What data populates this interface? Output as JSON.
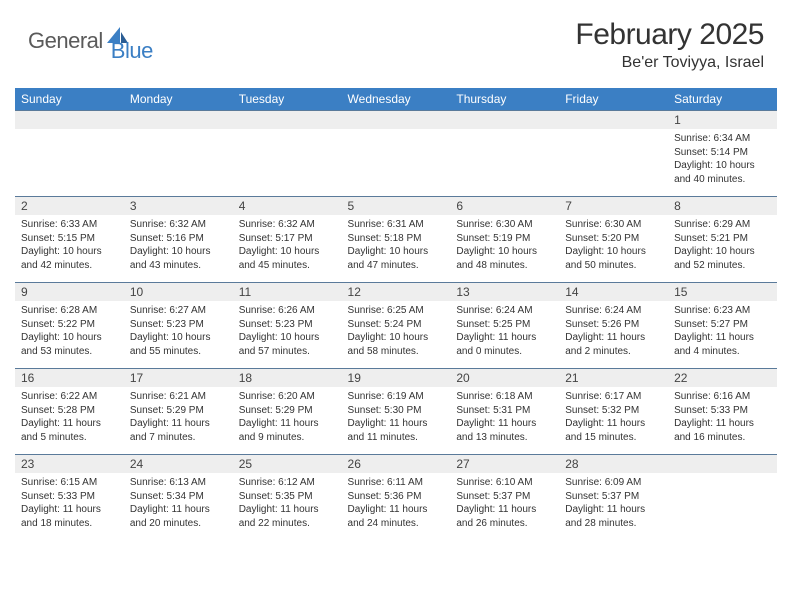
{
  "logo": {
    "general": "General",
    "blue": "Blue",
    "icon_color": "#3b7fc4"
  },
  "header": {
    "title": "February 2025",
    "location": "Be'er Toviyya, Israel"
  },
  "colors": {
    "header_bar": "#3b7fc4",
    "day_num_bg": "#eeeeee",
    "cell_border": "#5a7a9a",
    "text": "#333333"
  },
  "daynames": [
    "Sunday",
    "Monday",
    "Tuesday",
    "Wednesday",
    "Thursday",
    "Friday",
    "Saturday"
  ],
  "weeks": [
    [
      null,
      null,
      null,
      null,
      null,
      null,
      {
        "n": "1",
        "sr": "6:34 AM",
        "ss": "5:14 PM",
        "dl": "10 hours and 40 minutes."
      }
    ],
    [
      {
        "n": "2",
        "sr": "6:33 AM",
        "ss": "5:15 PM",
        "dl": "10 hours and 42 minutes."
      },
      {
        "n": "3",
        "sr": "6:32 AM",
        "ss": "5:16 PM",
        "dl": "10 hours and 43 minutes."
      },
      {
        "n": "4",
        "sr": "6:32 AM",
        "ss": "5:17 PM",
        "dl": "10 hours and 45 minutes."
      },
      {
        "n": "5",
        "sr": "6:31 AM",
        "ss": "5:18 PM",
        "dl": "10 hours and 47 minutes."
      },
      {
        "n": "6",
        "sr": "6:30 AM",
        "ss": "5:19 PM",
        "dl": "10 hours and 48 minutes."
      },
      {
        "n": "7",
        "sr": "6:30 AM",
        "ss": "5:20 PM",
        "dl": "10 hours and 50 minutes."
      },
      {
        "n": "8",
        "sr": "6:29 AM",
        "ss": "5:21 PM",
        "dl": "10 hours and 52 minutes."
      }
    ],
    [
      {
        "n": "9",
        "sr": "6:28 AM",
        "ss": "5:22 PM",
        "dl": "10 hours and 53 minutes."
      },
      {
        "n": "10",
        "sr": "6:27 AM",
        "ss": "5:23 PM",
        "dl": "10 hours and 55 minutes."
      },
      {
        "n": "11",
        "sr": "6:26 AM",
        "ss": "5:23 PM",
        "dl": "10 hours and 57 minutes."
      },
      {
        "n": "12",
        "sr": "6:25 AM",
        "ss": "5:24 PM",
        "dl": "10 hours and 58 minutes."
      },
      {
        "n": "13",
        "sr": "6:24 AM",
        "ss": "5:25 PM",
        "dl": "11 hours and 0 minutes."
      },
      {
        "n": "14",
        "sr": "6:24 AM",
        "ss": "5:26 PM",
        "dl": "11 hours and 2 minutes."
      },
      {
        "n": "15",
        "sr": "6:23 AM",
        "ss": "5:27 PM",
        "dl": "11 hours and 4 minutes."
      }
    ],
    [
      {
        "n": "16",
        "sr": "6:22 AM",
        "ss": "5:28 PM",
        "dl": "11 hours and 5 minutes."
      },
      {
        "n": "17",
        "sr": "6:21 AM",
        "ss": "5:29 PM",
        "dl": "11 hours and 7 minutes."
      },
      {
        "n": "18",
        "sr": "6:20 AM",
        "ss": "5:29 PM",
        "dl": "11 hours and 9 minutes."
      },
      {
        "n": "19",
        "sr": "6:19 AM",
        "ss": "5:30 PM",
        "dl": "11 hours and 11 minutes."
      },
      {
        "n": "20",
        "sr": "6:18 AM",
        "ss": "5:31 PM",
        "dl": "11 hours and 13 minutes."
      },
      {
        "n": "21",
        "sr": "6:17 AM",
        "ss": "5:32 PM",
        "dl": "11 hours and 15 minutes."
      },
      {
        "n": "22",
        "sr": "6:16 AM",
        "ss": "5:33 PM",
        "dl": "11 hours and 16 minutes."
      }
    ],
    [
      {
        "n": "23",
        "sr": "6:15 AM",
        "ss": "5:33 PM",
        "dl": "11 hours and 18 minutes."
      },
      {
        "n": "24",
        "sr": "6:13 AM",
        "ss": "5:34 PM",
        "dl": "11 hours and 20 minutes."
      },
      {
        "n": "25",
        "sr": "6:12 AM",
        "ss": "5:35 PM",
        "dl": "11 hours and 22 minutes."
      },
      {
        "n": "26",
        "sr": "6:11 AM",
        "ss": "5:36 PM",
        "dl": "11 hours and 24 minutes."
      },
      {
        "n": "27",
        "sr": "6:10 AM",
        "ss": "5:37 PM",
        "dl": "11 hours and 26 minutes."
      },
      {
        "n": "28",
        "sr": "6:09 AM",
        "ss": "5:37 PM",
        "dl": "11 hours and 28 minutes."
      },
      null
    ]
  ],
  "labels": {
    "sunrise": "Sunrise:",
    "sunset": "Sunset:",
    "daylight": "Daylight:"
  }
}
